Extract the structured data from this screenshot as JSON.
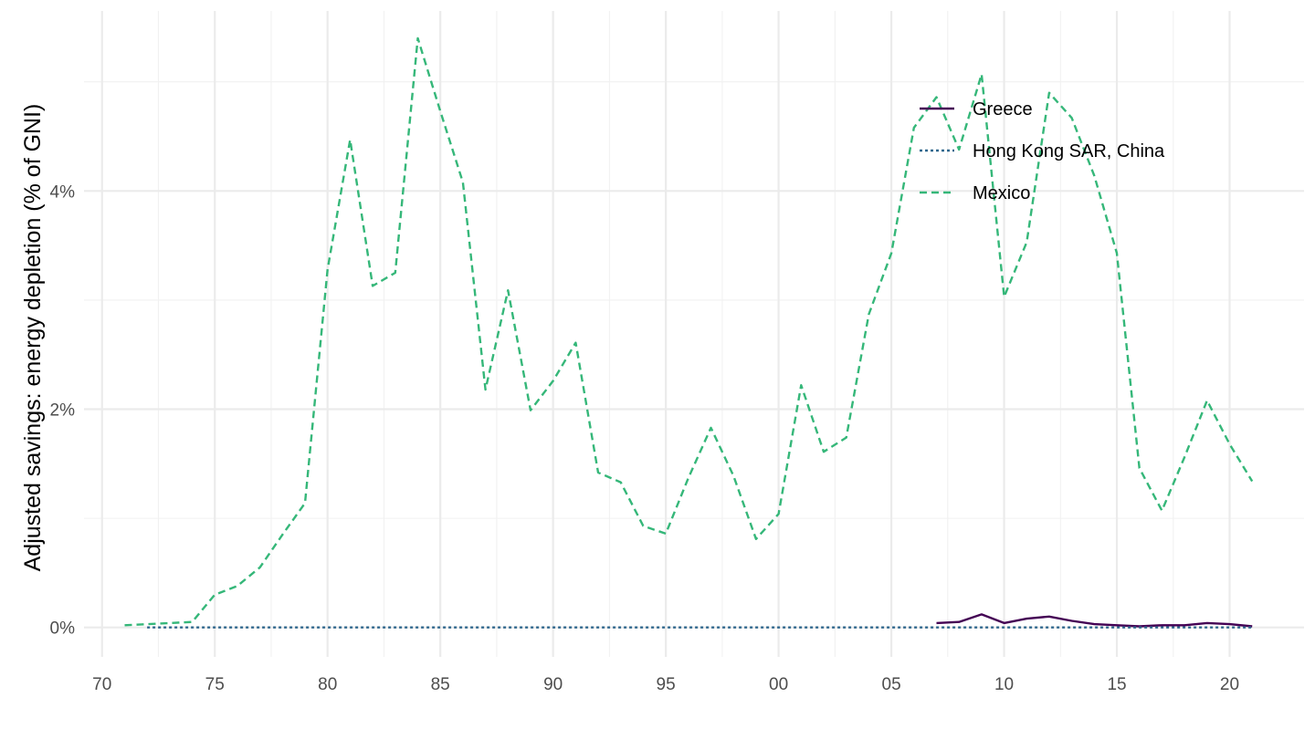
{
  "chart_data": {
    "type": "line",
    "title": "",
    "xlabel": "",
    "ylabel": "Adjusted savings: energy depletion (% of GNI)",
    "x_tick_labels": [
      "70",
      "75",
      "80",
      "85",
      "90",
      "95",
      "00",
      "05",
      "10",
      "15",
      "20"
    ],
    "x_ticks_years": [
      1970,
      1975,
      1980,
      1985,
      1990,
      1995,
      2000,
      2005,
      2010,
      2015,
      2020
    ],
    "y_tick_labels": [
      "0%",
      "2%",
      "4%"
    ],
    "y_ticks": [
      0,
      2,
      4
    ],
    "xlim": [
      1969.2,
      2023.3
    ],
    "ylim": [
      -0.27,
      5.65
    ],
    "grid": true,
    "legend_position": "top-right (inside plot)",
    "series": [
      {
        "name": "Greece",
        "color": "#440154",
        "dash": "solid",
        "points": [
          [
            2007,
            0.04
          ],
          [
            2008,
            0.05
          ],
          [
            2009,
            0.12
          ],
          [
            2010,
            0.04
          ],
          [
            2011,
            0.08
          ],
          [
            2012,
            0.1
          ],
          [
            2013,
            0.06
          ],
          [
            2014,
            0.03
          ],
          [
            2015,
            0.02
          ],
          [
            2016,
            0.01
          ],
          [
            2017,
            0.02
          ],
          [
            2018,
            0.02
          ],
          [
            2019,
            0.04
          ],
          [
            2020,
            0.03
          ],
          [
            2021,
            0.01
          ]
        ]
      },
      {
        "name": "Hong Kong SAR, China",
        "color": "#31688e",
        "dash": "dotted",
        "points": [
          [
            1972,
            0
          ],
          [
            1975,
            0
          ],
          [
            1980,
            0
          ],
          [
            1985,
            0
          ],
          [
            1990,
            0
          ],
          [
            1995,
            0
          ],
          [
            2000,
            0
          ],
          [
            2005,
            0
          ],
          [
            2010,
            0
          ],
          [
            2015,
            0
          ],
          [
            2020,
            0
          ],
          [
            2021,
            0
          ]
        ]
      },
      {
        "name": "Mexico",
        "color": "#35b779",
        "dash": "dashed",
        "points": [
          [
            1971,
            0.02
          ],
          [
            1972,
            0.03
          ],
          [
            1973,
            0.04
          ],
          [
            1974,
            0.05
          ],
          [
            1975,
            0.3
          ],
          [
            1976,
            0.38
          ],
          [
            1977,
            0.55
          ],
          [
            1978,
            0.85
          ],
          [
            1979,
            1.14
          ],
          [
            1980,
            3.28
          ],
          [
            1981,
            4.47
          ],
          [
            1982,
            3.13
          ],
          [
            1983,
            3.25
          ],
          [
            1984,
            5.4
          ],
          [
            1985,
            4.73
          ],
          [
            1986,
            4.08
          ],
          [
            1987,
            2.18
          ],
          [
            1988,
            3.09
          ],
          [
            1989,
            1.99
          ],
          [
            1990,
            2.26
          ],
          [
            1991,
            2.61
          ],
          [
            1992,
            1.42
          ],
          [
            1993,
            1.33
          ],
          [
            1994,
            0.93
          ],
          [
            1995,
            0.86
          ],
          [
            1996,
            1.37
          ],
          [
            1997,
            1.83
          ],
          [
            1998,
            1.39
          ],
          [
            1999,
            0.81
          ],
          [
            2000,
            1.04
          ],
          [
            2001,
            2.22
          ],
          [
            2002,
            1.61
          ],
          [
            2003,
            1.74
          ],
          [
            2004,
            2.87
          ],
          [
            2005,
            3.43
          ],
          [
            2006,
            4.58
          ],
          [
            2007,
            4.86
          ],
          [
            2008,
            4.38
          ],
          [
            2009,
            5.07
          ],
          [
            2010,
            3.03
          ],
          [
            2011,
            3.53
          ],
          [
            2012,
            4.9
          ],
          [
            2013,
            4.67
          ],
          [
            2014,
            4.14
          ],
          [
            2015,
            3.43
          ],
          [
            2016,
            1.46
          ],
          [
            2017,
            1.07
          ],
          [
            2018,
            1.56
          ],
          [
            2019,
            2.08
          ],
          [
            2020,
            1.68
          ],
          [
            2021,
            1.34
          ]
        ]
      }
    ]
  }
}
